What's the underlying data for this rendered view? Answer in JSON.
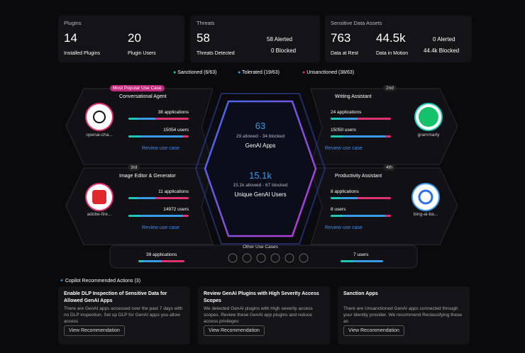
{
  "summary": {
    "plugins": {
      "title": "Plugins",
      "items": [
        {
          "value": "14",
          "label": "Installed Plugins"
        },
        {
          "value": "20",
          "label": "Plugin Users"
        }
      ]
    },
    "threats": {
      "title": "Threats",
      "value": "58",
      "label": "Threats Detected",
      "side": [
        "58 Alerted",
        "0 Blocked"
      ]
    },
    "sensitive": {
      "title": "Sensitive Data Assets",
      "items": [
        {
          "value": "763",
          "label": "Data at Rest"
        },
        {
          "value": "44.5k",
          "label": "Data in Motion"
        }
      ],
      "side": [
        "0 Alerted",
        "44.4k Blocked"
      ]
    }
  },
  "legend": [
    "Sanctioned (6/63)",
    "Tolerated (19/63)",
    "Unsanctioned (38/63)"
  ],
  "center": {
    "apps_value": "63",
    "apps_detail": "29 allowed - 34 blocked",
    "apps_label": "GenAI Apps",
    "users_value": "15.1k",
    "users_detail": "15.1k allowed - 67 blocked",
    "users_label": "Unique GenAI Users"
  },
  "use_cases": [
    {
      "badge": "Most Popular Use Case",
      "name": "Conversational Agent",
      "app": "openai-cha...",
      "applications": "38 applications",
      "users": "15054 users",
      "link": "Review use case"
    },
    {
      "badge": "2nd",
      "name": "Writing Assistant",
      "app": "grammarly",
      "applications": "24 applications",
      "users": "15050 users",
      "link": "Review use case"
    },
    {
      "badge": "3rd",
      "name": "Image Editor & Generator",
      "app": "adobe-fire...",
      "applications": "11 applications",
      "users": "14972 users",
      "link": "Review use case"
    },
    {
      "badge": "4th",
      "name": "Productivity Assistant",
      "app": "bing-ai-ba...",
      "applications": "8 applications",
      "users": "8 users",
      "link": "Review use case"
    }
  ],
  "other": {
    "title": "Other Use Cases",
    "applications": "39 applications",
    "users": "7 users"
  },
  "actions": {
    "title": "Copilot Recommended Actions (3)",
    "cards": [
      {
        "title": "Enable DLP Inspection of Sensitive Data for Allowed GenAI Apps",
        "text": "There are GenAI apps accessed over the past 7 days with no DLP inspection. Set up DLP for GenAI apps you allow access",
        "button": "View Recommendation"
      },
      {
        "title": "Review GenAI Plugins with High Severity Access Scopes",
        "text": "We detected GenAI plugins with High severity access scopes. Review these GenAI app plugins and reduce access privileges",
        "button": "View Recommendation"
      },
      {
        "title": "Sanction Apps",
        "text": "There are Unsanctioned GenAI apps connected through your identity provider. We recommend Reclassifying these as",
        "button": "View Recommendation"
      }
    ]
  }
}
